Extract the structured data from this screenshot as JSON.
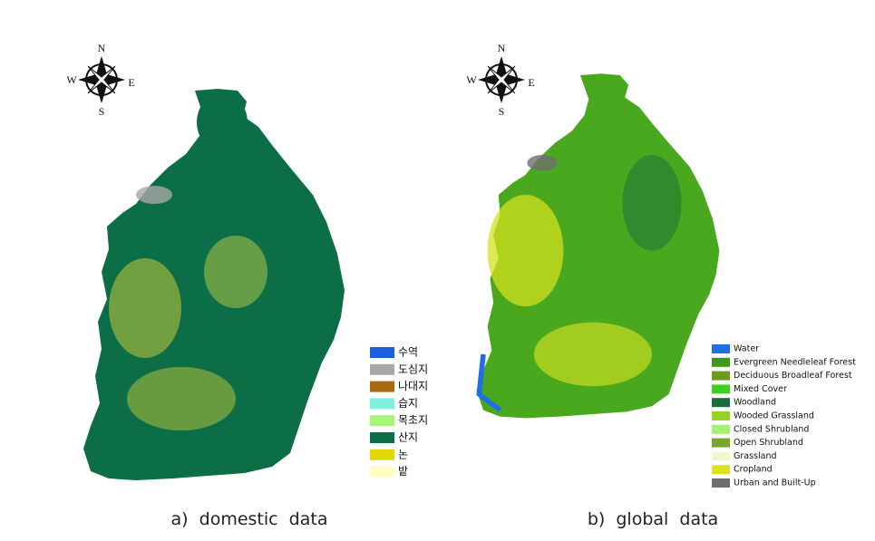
{
  "panels": [
    {
      "compass": {
        "n": "N",
        "w": "W",
        "e": "E",
        "s": "S"
      },
      "legend": [
        {
          "label": "수역",
          "color": "#1a5fe0"
        },
        {
          "label": "도심지",
          "color": "#a8a8a8"
        },
        {
          "label": "나대지",
          "color": "#a86a10"
        },
        {
          "label": "습지",
          "color": "#7ff0e0"
        },
        {
          "label": "목초지",
          "color": "#a6f57a"
        },
        {
          "label": "산지",
          "color": "#0a7048"
        },
        {
          "label": "논",
          "color": "#e0d800"
        },
        {
          "label": "밭",
          "color": "#ffffc0"
        }
      ],
      "caption": "a)  domestic  data"
    },
    {
      "compass": {
        "n": "N",
        "w": "W",
        "e": "E",
        "s": "S"
      },
      "legend": [
        {
          "label": "Water",
          "color": "#1e6ee6"
        },
        {
          "label": "Evergreen Needleleaf Forest",
          "color": "#3c9a14"
        },
        {
          "label": "Deciduous Broadleaf Forest",
          "color": "#6e9a1e"
        },
        {
          "label": "Mixed Cover",
          "color": "#40d020"
        },
        {
          "label": "Woodland",
          "color": "#156e3c"
        },
        {
          "label": "Wooded Grassland",
          "color": "#96d21e"
        },
        {
          "label": "Closed Shrubland",
          "color": "#a8f070"
        },
        {
          "label": "Open Shrubland",
          "color": "#78a82a"
        },
        {
          "label": "Grassland",
          "color": "#f0f8d0"
        },
        {
          "label": "Cropland",
          "color": "#e0e020"
        },
        {
          "label": "Urban and Built-Up",
          "color": "#6e6e6e"
        }
      ],
      "caption": "b)  global  data"
    }
  ]
}
